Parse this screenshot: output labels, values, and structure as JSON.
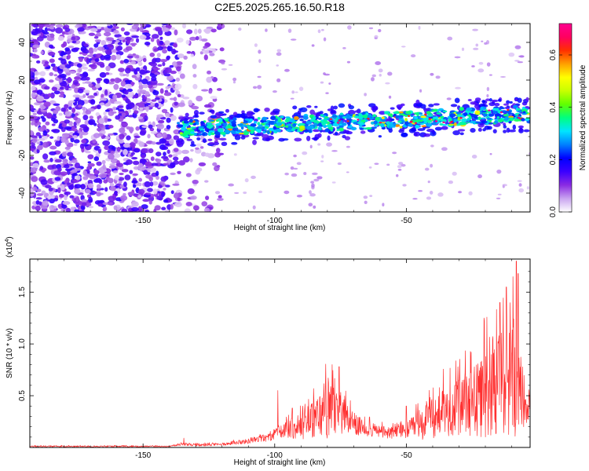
{
  "chart_data": [
    {
      "type": "heatmap",
      "title": "C2E5.2025.265.16.50.R18",
      "xlabel": "Height of straight line (km)",
      "ylabel": "Frequency (Hz)",
      "xlim": [
        -193,
        -3
      ],
      "ylim": [
        -50,
        50
      ],
      "xticks": [
        -150,
        -100,
        -50
      ],
      "xtick_labels": [
        "-150",
        "-100",
        "-50"
      ],
      "yticks": [
        -40,
        -20,
        0,
        20,
        40
      ],
      "ytick_labels": [
        "-40",
        "-20",
        "0",
        "20",
        "40"
      ],
      "colorbar": {
        "label": "Normalized spectral amplitude",
        "range": [
          0,
          0.72
        ],
        "ticks": [
          0,
          0.2,
          0.4,
          0.6
        ],
        "tick_labels": [
          "0.0",
          "0.2",
          "0.4",
          "0.6"
        ],
        "colors": [
          "#ffffff",
          "#c9a4f0",
          "#8a2be2",
          "#3b00ff",
          "#0000ff",
          "#0080ff",
          "#00e5ff",
          "#00ff80",
          "#60ff00",
          "#c8ff00",
          "#ffff00",
          "#ffa000",
          "#ff3000",
          "#ff0060",
          "#ff0090"
        ]
      },
      "description_values": {
        "noise_region_x": [
          -193,
          -120
        ],
        "signal_band_start_x": -137,
        "signal_band_center_at_start_hz": -6,
        "signal_band_center_at_end_hz": 2,
        "signal_band_half_width_hz": 5
      }
    },
    {
      "type": "line",
      "xlabel": "Height of straight line (km)",
      "ylabel": "SNR (10 * v/v)",
      "multiplier_label": "(x10",
      "multiplier_exponent": "4",
      "multiplier_close": ")",
      "xlim": [
        -193,
        -3
      ],
      "ylim": [
        0,
        1.82
      ],
      "xticks": [
        -150,
        -100,
        -50
      ],
      "xtick_labels": [
        "-150",
        "-100",
        "-50"
      ],
      "yticks": [
        0.5,
        1.0,
        1.5
      ],
      "ytick_labels": [
        "0.5",
        "1.0",
        "1.5"
      ],
      "series": [
        {
          "name": "SNR",
          "color": "#ff3030",
          "anchors_x": [
            -193,
            -140,
            -135,
            -130,
            -120,
            -110,
            -101,
            -99,
            -96,
            -90,
            -85,
            -80,
            -75,
            -70,
            -65,
            -60,
            -55,
            -50,
            -45,
            -40,
            -35,
            -30,
            -25,
            -20,
            -15,
            -10,
            -8,
            -5,
            -3
          ],
          "anchors_base": [
            0.01,
            0.01,
            0.03,
            0.02,
            0.03,
            0.06,
            0.1,
            0.15,
            0.16,
            0.2,
            0.28,
            0.35,
            0.3,
            0.22,
            0.18,
            0.15,
            0.14,
            0.16,
            0.22,
            0.28,
            0.35,
            0.38,
            0.4,
            0.5,
            0.6,
            0.65,
            0.55,
            0.45,
            0.4
          ],
          "anchors_amp": [
            0.01,
            0.01,
            0.02,
            0.02,
            0.02,
            0.04,
            0.06,
            0.08,
            0.12,
            0.2,
            0.32,
            0.45,
            0.3,
            0.18,
            0.12,
            0.1,
            0.1,
            0.12,
            0.25,
            0.32,
            0.4,
            0.45,
            0.55,
            0.7,
            0.8,
            1.0,
            0.7,
            0.4,
            0.25
          ],
          "spikes": [
            [
              -134.5,
              0.09
            ],
            [
              -98.8,
              0.55
            ],
            [
              -93.3,
              0.38
            ],
            [
              -78.2,
              0.8
            ],
            [
              -75.5,
              0.78
            ],
            [
              -50,
              0.4
            ],
            [
              -20.5,
              1.25
            ],
            [
              -14.5,
              1.4
            ],
            [
              -12,
              1.55
            ],
            [
              -9.5,
              1.65
            ],
            [
              -8.2,
              1.8
            ],
            [
              -7.5,
              1.68
            ]
          ]
        }
      ]
    }
  ]
}
